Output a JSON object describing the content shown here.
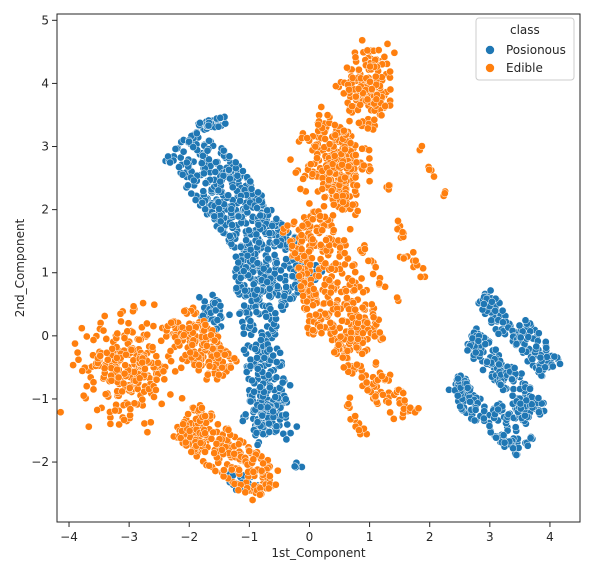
{
  "chart_data": {
    "type": "scatter",
    "xlabel": "1st_Component",
    "ylabel": "2nd_Component",
    "xlim": [
      -4.2,
      4.5
    ],
    "ylim": [
      -2.95,
      5.1
    ],
    "xticks": [
      -4,
      -3,
      -2,
      -1,
      0,
      1,
      2,
      3,
      4
    ],
    "yticks": [
      -2,
      -1,
      0,
      1,
      2,
      3,
      4,
      5
    ],
    "grid": false,
    "legend": {
      "title": "class",
      "placement": "top-right"
    },
    "series": [
      {
        "name": "Posionous",
        "color": "#1f77b4",
        "clusters": [
          {
            "type": "band",
            "from": [
              -2.1,
              3.1
            ],
            "to": [
              -0.1,
              0.7
            ],
            "width": 0.9,
            "count": 520
          },
          {
            "type": "band",
            "from": [
              -1.0,
              1.3
            ],
            "to": [
              -0.6,
              -1.6
            ],
            "width": 0.6,
            "count": 260
          },
          {
            "type": "band",
            "from": [
              -1.9,
              3.3
            ],
            "to": [
              -1.4,
              3.4
            ],
            "width": 0.15,
            "count": 30
          },
          {
            "type": "blob",
            "center": [
              -0.7,
              -1.2
            ],
            "spread": [
              0.25,
              0.3
            ],
            "count": 80
          },
          {
            "type": "blob",
            "center": [
              -1.6,
              0.3
            ],
            "spread": [
              0.2,
              0.25
            ],
            "count": 40
          },
          {
            "type": "blob",
            "center": [
              -1.1,
              -2.3
            ],
            "spread": [
              0.18,
              0.12
            ],
            "count": 25
          },
          {
            "type": "blob",
            "center": [
              -0.2,
              -2.1
            ],
            "spread": [
              0.05,
              0.06
            ],
            "count": 6
          },
          {
            "type": "band",
            "from": [
              2.4,
              -0.7
            ],
            "to": [
              2.85,
              -1.3
            ],
            "width": 0.35,
            "count": 60
          },
          {
            "type": "band",
            "from": [
              2.65,
              0.0
            ],
            "to": [
              3.3,
              -0.7
            ],
            "width": 0.4,
            "count": 80
          },
          {
            "type": "band",
            "from": [
              2.9,
              0.65
            ],
            "to": [
              3.3,
              0.05
            ],
            "width": 0.3,
            "count": 50
          },
          {
            "type": "band",
            "from": [
              3.0,
              -1.2
            ],
            "to": [
              3.6,
              -1.8
            ],
            "width": 0.45,
            "count": 70
          },
          {
            "type": "band",
            "from": [
              3.25,
              -0.6
            ],
            "to": [
              3.8,
              -1.3
            ],
            "width": 0.45,
            "count": 80
          },
          {
            "type": "band",
            "from": [
              3.45,
              0.15
            ],
            "to": [
              4.05,
              -0.55
            ],
            "width": 0.45,
            "count": 90
          }
        ]
      },
      {
        "name": "Edible",
        "color": "#ff7f0e",
        "clusters": [
          {
            "type": "blob",
            "center": [
              0.45,
              2.7
            ],
            "spread": [
              0.35,
              0.55
            ],
            "count": 300
          },
          {
            "type": "blob",
            "center": [
              1.0,
              4.0
            ],
            "spread": [
              0.3,
              0.45
            ],
            "count": 160
          },
          {
            "type": "blob",
            "center": [
              -3.0,
              -0.5
            ],
            "spread": [
              0.55,
              0.55
            ],
            "count": 280
          },
          {
            "type": "band",
            "from": [
              -2.2,
              0.3
            ],
            "to": [
              -1.4,
              -0.6
            ],
            "width": 0.6,
            "count": 160
          },
          {
            "type": "band",
            "from": [
              -2.1,
              -1.3
            ],
            "to": [
              -0.7,
              -2.4
            ],
            "width": 0.7,
            "count": 220
          },
          {
            "type": "band",
            "from": [
              -0.1,
              1.9
            ],
            "to": [
              0.9,
              -0.2
            ],
            "width": 0.9,
            "count": 300
          },
          {
            "type": "band",
            "from": [
              -0.1,
              1.3
            ],
            "to": [
              0.1,
              -0.1
            ],
            "width": 0.25,
            "count": 50
          },
          {
            "type": "band",
            "from": [
              0.4,
              -0.2
            ],
            "to": [
              1.6,
              -1.3
            ],
            "width": 0.3,
            "count": 60
          },
          {
            "type": "band",
            "from": [
              0.7,
              0.0
            ],
            "to": [
              1.8,
              -1.2
            ],
            "width": 0.15,
            "count": 30
          },
          {
            "type": "band",
            "from": [
              0.6,
              -1.0
            ],
            "to": [
              0.9,
              -1.6
            ],
            "width": 0.15,
            "count": 15
          },
          {
            "type": "band",
            "from": [
              1.4,
              1.8
            ],
            "to": [
              1.9,
              0.9
            ],
            "width": 0.15,
            "count": 16
          },
          {
            "type": "band",
            "from": [
              0.8,
              1.5
            ],
            "to": [
              1.3,
              0.6
            ],
            "width": 0.15,
            "count": 16
          },
          {
            "type": "band",
            "from": [
              1.3,
              2.3
            ],
            "to": [
              1.3,
              2.4
            ],
            "width": 0.08,
            "count": 4
          },
          {
            "type": "band",
            "from": [
              1.95,
              2.75
            ],
            "to": [
              2.05,
              2.5
            ],
            "width": 0.06,
            "count": 5
          },
          {
            "type": "band",
            "from": [
              2.25,
              2.3
            ],
            "to": [
              2.25,
              2.2
            ],
            "width": 0.04,
            "count": 3
          },
          {
            "type": "blob",
            "center": [
              1.85,
              2.95
            ],
            "spread": [
              0.03,
              0.05
            ],
            "count": 3
          },
          {
            "type": "blob",
            "center": [
              1.55,
              1.2
            ],
            "spread": [
              0.05,
              0.05
            ],
            "count": 3
          },
          {
            "type": "blob",
            "center": [
              1.5,
              0.6
            ],
            "spread": [
              0.04,
              0.04
            ],
            "count": 2
          },
          {
            "type": "blob",
            "center": [
              0.1,
              3.4
            ],
            "spread": [
              0.05,
              0.08
            ],
            "count": 3
          },
          {
            "type": "band",
            "from": [
              -1.1,
              -1.9
            ],
            "to": [
              -0.6,
              -2.4
            ],
            "width": 0.2,
            "count": 20
          }
        ]
      }
    ]
  }
}
